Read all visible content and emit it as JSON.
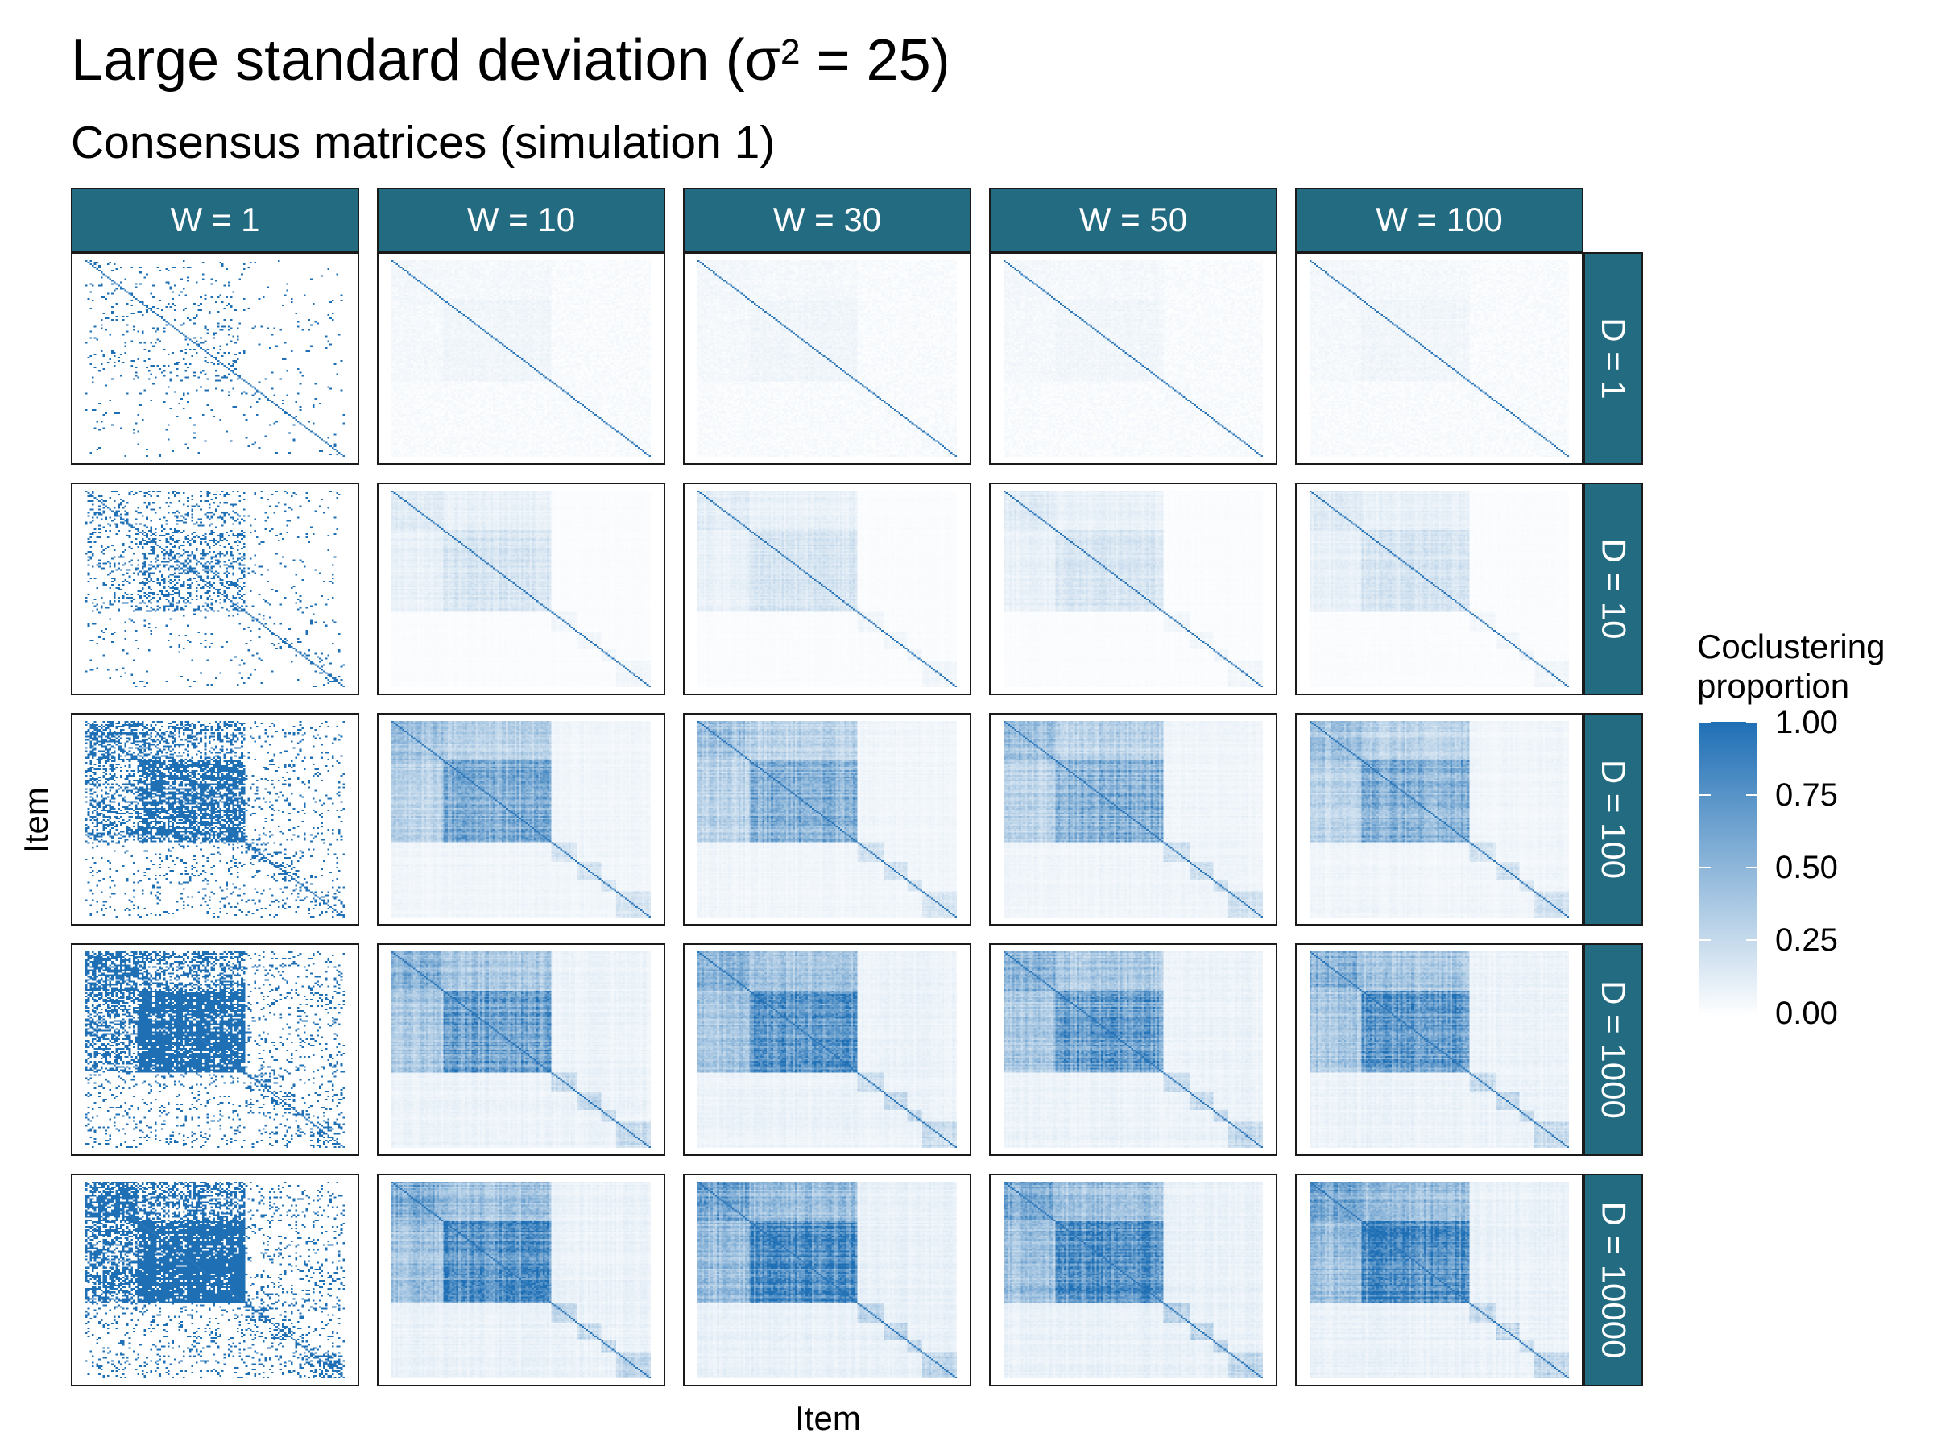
{
  "title": {
    "main": "Large standard deviation (σ",
    "sup": "2",
    "end": " = 25)"
  },
  "subtitle": "Consensus matrices (simulation 1)",
  "colors": {
    "strip": "#236B80",
    "high": "#1F6FB5",
    "low": "#FFFFFF"
  },
  "chart_data": {
    "type": "heatmap",
    "xlabel": "Item",
    "ylabel": "Item",
    "column_facets": [
      "W = 1",
      "W = 10",
      "W = 30",
      "W = 50",
      "W = 100"
    ],
    "row_facets": [
      "D = 1",
      "D = 10",
      "D = 100",
      "D = 1000",
      "D = 10000"
    ],
    "legend": {
      "title": [
        "Coclustering",
        "proportion"
      ],
      "placement": "right",
      "ticks": [
        "1.00",
        "0.75",
        "0.50",
        "0.25",
        "0.00"
      ],
      "range": [
        0,
        1
      ]
    },
    "cluster_block_fraction": [
      0.2,
      0.62,
      0.72,
      0.81,
      0.87,
      1.0
    ],
    "approx_block_intensity_by_D": [
      0.04,
      0.18,
      0.55,
      0.7,
      0.8
    ],
    "grid": false
  }
}
